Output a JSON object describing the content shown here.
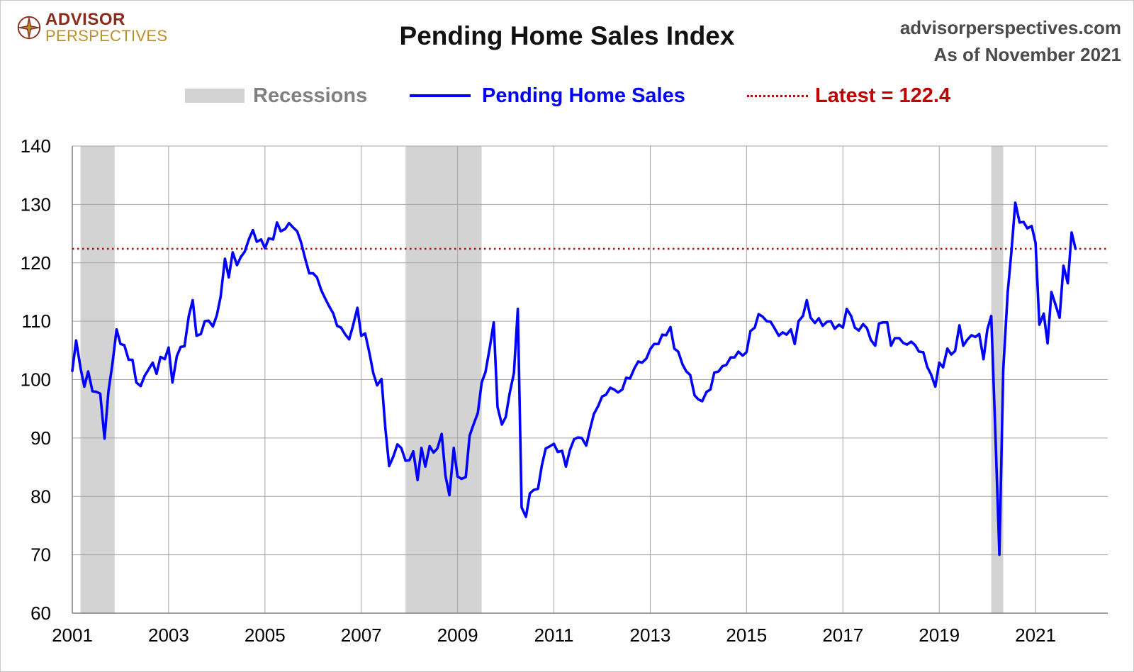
{
  "header": {
    "logo_line1": "ADVISOR",
    "logo_line2": "PERSPECTIVES",
    "title": "Pending Home Sales Index",
    "source_line1": "advisorperspectives.com",
    "source_line2": "As of November 2021"
  },
  "legend": {
    "recessions": "Recessions",
    "series": "Pending Home Sales",
    "latest": "Latest = 122.4"
  },
  "colors": {
    "series": "#0000ff",
    "latest": "#c00000",
    "recession": "#d3d3d3",
    "grid": "#a6a6a6",
    "recession_text": "#808080"
  },
  "chart_data": {
    "type": "line",
    "title": "Pending Home Sales Index",
    "xlabel": "",
    "ylabel": "",
    "xlim": [
      2001,
      2022.5
    ],
    "ylim": [
      60,
      140
    ],
    "yticks": [
      60,
      70,
      80,
      90,
      100,
      110,
      120,
      130,
      140
    ],
    "xticks": [
      2001,
      2003,
      2005,
      2007,
      2009,
      2011,
      2013,
      2015,
      2017,
      2019,
      2021
    ],
    "grid": true,
    "latest_value": 122.4,
    "recessions": [
      [
        2001.17,
        2001.88
      ],
      [
        2007.92,
        2009.5
      ],
      [
        2020.08,
        2020.33
      ]
    ],
    "series": [
      {
        "name": "Pending Home Sales",
        "x": [
          2001.0,
          2001.08,
          2001.17,
          2001.25,
          2001.33,
          2001.42,
          2001.5,
          2001.58,
          2001.67,
          2001.75,
          2001.83,
          2001.92,
          2002.0,
          2002.08,
          2002.17,
          2002.25,
          2002.33,
          2002.42,
          2002.5,
          2002.58,
          2002.67,
          2002.75,
          2002.83,
          2002.92,
          2003.0,
          2003.08,
          2003.17,
          2003.25,
          2003.33,
          2003.42,
          2003.5,
          2003.58,
          2003.67,
          2003.75,
          2003.83,
          2003.92,
          2004.0,
          2004.08,
          2004.17,
          2004.25,
          2004.33,
          2004.42,
          2004.5,
          2004.58,
          2004.67,
          2004.75,
          2004.83,
          2004.92,
          2005.0,
          2005.08,
          2005.17,
          2005.25,
          2005.33,
          2005.42,
          2005.5,
          2005.58,
          2005.67,
          2005.75,
          2005.83,
          2005.92,
          2006.0,
          2006.08,
          2006.17,
          2006.25,
          2006.33,
          2006.42,
          2006.5,
          2006.58,
          2006.67,
          2006.75,
          2006.83,
          2006.92,
          2007.0,
          2007.08,
          2007.17,
          2007.25,
          2007.33,
          2007.42,
          2007.5,
          2007.58,
          2007.67,
          2007.75,
          2007.83,
          2007.92,
          2008.0,
          2008.08,
          2008.17,
          2008.25,
          2008.33,
          2008.42,
          2008.5,
          2008.58,
          2008.67,
          2008.75,
          2008.83,
          2008.92,
          2009.0,
          2009.08,
          2009.17,
          2009.25,
          2009.33,
          2009.42,
          2009.5,
          2009.58,
          2009.67,
          2009.75,
          2009.83,
          2009.92,
          2010.0,
          2010.08,
          2010.17,
          2010.25,
          2010.33,
          2010.42,
          2010.5,
          2010.58,
          2010.67,
          2010.75,
          2010.83,
          2010.92,
          2011.0,
          2011.08,
          2011.17,
          2011.25,
          2011.33,
          2011.42,
          2011.5,
          2011.58,
          2011.67,
          2011.75,
          2011.83,
          2011.92,
          2012.0,
          2012.08,
          2012.17,
          2012.25,
          2012.33,
          2012.42,
          2012.5,
          2012.58,
          2012.67,
          2012.75,
          2012.83,
          2012.92,
          2013.0,
          2013.08,
          2013.17,
          2013.25,
          2013.33,
          2013.42,
          2013.5,
          2013.58,
          2013.67,
          2013.75,
          2013.83,
          2013.92,
          2014.0,
          2014.08,
          2014.17,
          2014.25,
          2014.33,
          2014.42,
          2014.5,
          2014.58,
          2014.67,
          2014.75,
          2014.83,
          2014.92,
          2015.0,
          2015.08,
          2015.17,
          2015.25,
          2015.33,
          2015.42,
          2015.5,
          2015.58,
          2015.67,
          2015.75,
          2015.83,
          2015.92,
          2016.0,
          2016.08,
          2016.17,
          2016.25,
          2016.33,
          2016.42,
          2016.5,
          2016.58,
          2016.67,
          2016.75,
          2016.83,
          2016.92,
          2017.0,
          2017.08,
          2017.17,
          2017.25,
          2017.33,
          2017.42,
          2017.5,
          2017.58,
          2017.67,
          2017.75,
          2017.83,
          2017.92,
          2018.0,
          2018.08,
          2018.17,
          2018.25,
          2018.33,
          2018.42,
          2018.5,
          2018.58,
          2018.67,
          2018.75,
          2018.83,
          2018.92,
          2019.0,
          2019.08,
          2019.17,
          2019.25,
          2019.33,
          2019.42,
          2019.5,
          2019.58,
          2019.67,
          2019.75,
          2019.83,
          2019.92,
          2020.0,
          2020.08,
          2020.17,
          2020.25,
          2020.33,
          2020.42,
          2020.5,
          2020.58,
          2020.67,
          2020.75,
          2020.83,
          2020.92,
          2021.0,
          2021.08,
          2021.17,
          2021.25,
          2021.33,
          2021.42,
          2021.5,
          2021.58,
          2021.67,
          2021.75,
          2021.83
        ],
        "values": [
          101.5,
          106.7,
          102.0,
          98.8,
          101.4,
          98.0,
          97.9,
          97.6,
          89.9,
          98.0,
          102.5,
          108.6,
          106.1,
          105.9,
          103.4,
          103.4,
          99.5,
          98.9,
          100.6,
          101.7,
          102.9,
          101.0,
          103.9,
          103.5,
          105.5,
          99.5,
          104.0,
          105.6,
          105.7,
          110.9,
          113.6,
          107.5,
          107.8,
          110.0,
          110.1,
          109.1,
          111.0,
          114.2,
          120.7,
          117.5,
          121.8,
          119.6,
          121.0,
          121.9,
          124.1,
          125.6,
          123.6,
          124.0,
          122.5,
          124.2,
          124.0,
          126.9,
          125.4,
          125.8,
          126.8,
          126.1,
          125.4,
          123.5,
          120.9,
          118.2,
          118.2,
          117.5,
          115.3,
          113.9,
          112.6,
          111.3,
          109.2,
          108.9,
          107.7,
          106.9,
          109.3,
          112.3,
          107.5,
          107.9,
          104.5,
          101.1,
          99.0,
          100.1,
          91.7,
          85.2,
          86.9,
          88.9,
          88.3,
          86.1,
          86.2,
          87.7,
          82.8,
          88.3,
          85.1,
          88.6,
          87.5,
          88.2,
          90.7,
          83.5,
          80.2,
          88.3,
          83.4,
          83.0,
          83.3,
          90.4,
          92.3,
          94.3,
          99.5,
          101.3,
          105.6,
          109.8,
          95.3,
          92.3,
          93.6,
          97.6,
          101.1,
          112.1,
          78.1,
          76.5,
          80.5,
          81.1,
          81.3,
          85.3,
          88.2,
          88.6,
          89.0,
          87.6,
          87.8,
          85.1,
          87.9,
          89.8,
          90.1,
          90.0,
          88.7,
          91.5,
          94.1,
          95.5,
          97.1,
          97.4,
          98.6,
          98.3,
          97.8,
          98.3,
          100.3,
          100.2,
          101.9,
          103.1,
          102.9,
          103.6,
          105.2,
          106.1,
          106.1,
          107.7,
          107.6,
          109.0,
          105.3,
          104.8,
          102.6,
          101.4,
          100.8,
          97.3,
          96.6,
          96.3,
          97.9,
          98.3,
          101.2,
          101.4,
          102.3,
          102.5,
          103.8,
          103.8,
          104.8,
          104.1,
          104.7,
          108.3,
          108.9,
          111.2,
          110.8,
          110.0,
          109.9,
          108.8,
          107.5,
          108.1,
          107.7,
          108.6,
          106.1,
          110.0,
          110.9,
          113.6,
          110.6,
          109.7,
          110.5,
          109.2,
          109.9,
          110.0,
          108.7,
          109.4,
          108.9,
          112.1,
          110.9,
          108.9,
          108.4,
          109.5,
          108.8,
          106.8,
          105.8,
          109.6,
          109.8,
          109.8,
          105.8,
          107.1,
          107.1,
          106.3,
          106.0,
          106.5,
          105.9,
          104.8,
          104.7,
          102.2,
          100.9,
          98.8,
          102.9,
          102.1,
          105.3,
          104.3,
          104.9,
          109.3,
          105.8,
          106.8,
          107.6,
          107.3,
          107.8,
          103.5,
          108.6,
          110.9,
          89.8,
          70.0,
          101.6,
          114.8,
          122.0,
          130.3,
          126.9,
          127.0,
          125.9,
          126.3,
          123.4,
          109.4,
          111.3,
          106.2,
          115.0,
          112.7,
          110.6,
          119.5,
          116.5,
          125.2,
          122.4
        ]
      }
    ]
  }
}
